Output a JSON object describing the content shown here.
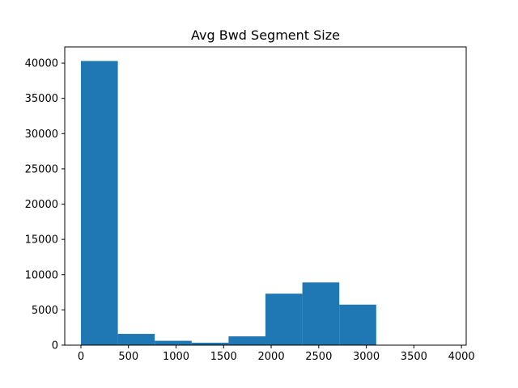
{
  "chart_data": {
    "type": "bar",
    "subtype": "histogram",
    "title": "Avg Bwd Segment Size",
    "xlabel": "",
    "ylabel": "",
    "bin_edges": [
      0,
      388,
      776,
      1164,
      1552,
      1940,
      2328,
      2716,
      3104,
      3492,
      3880
    ],
    "values": [
      40300,
      1600,
      620,
      350,
      1250,
      7300,
      8900,
      5750,
      0,
      0
    ],
    "xlim": [
      -170,
      4050
    ],
    "ylim": [
      0,
      42300
    ],
    "xticks": [
      0,
      500,
      1000,
      1500,
      2000,
      2500,
      3000,
      3500,
      4000
    ],
    "yticks": [
      0,
      5000,
      10000,
      15000,
      20000,
      25000,
      30000,
      35000,
      40000
    ],
    "bar_color": "#1f77b4",
    "grid": false,
    "legend": "none"
  }
}
